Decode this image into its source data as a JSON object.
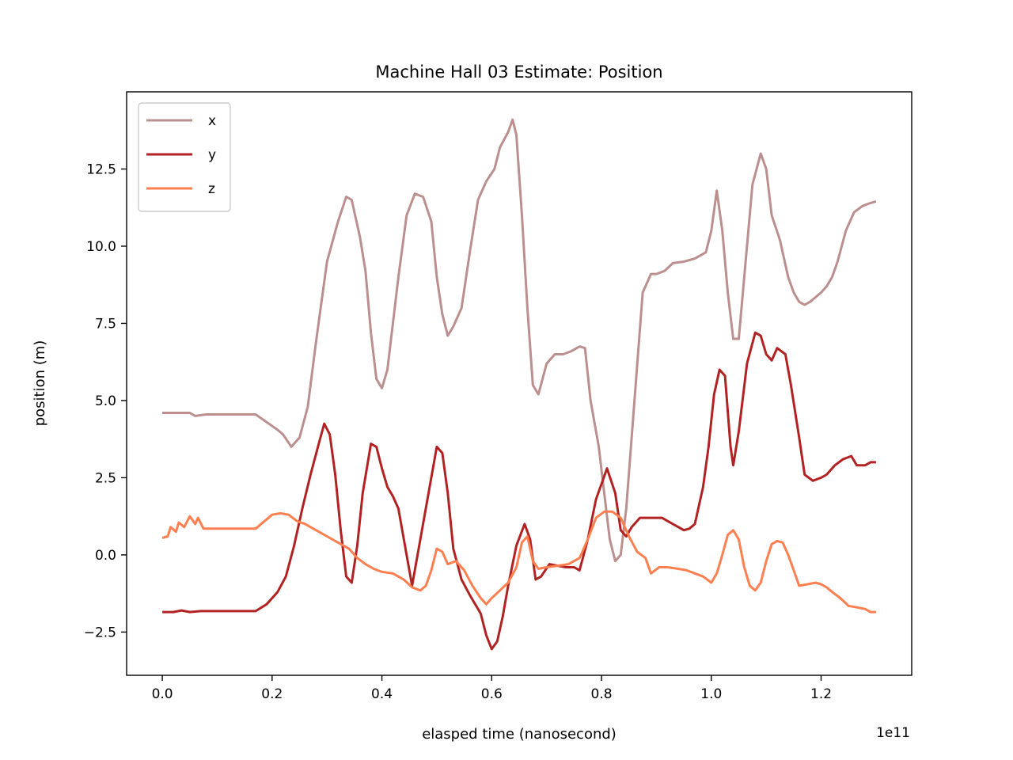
{
  "chart_data": {
    "type": "line",
    "title": "Machine Hall 03 Estimate: Position",
    "xlabel": "elasped time (nanosecond)",
    "ylabel": "position (m)",
    "x_offset_label": "1e11",
    "xlim": [
      -0.065,
      1.365
    ],
    "ylim": [
      -3.9,
      15.0
    ],
    "x_ticks": [
      0.0,
      0.2,
      0.4,
      0.6,
      0.8,
      1.0,
      1.2
    ],
    "x_tick_labels": [
      "0.0",
      "0.2",
      "0.4",
      "0.6",
      "0.8",
      "1.0",
      "1.2"
    ],
    "y_ticks": [
      -2.5,
      0.0,
      2.5,
      5.0,
      7.5,
      10.0,
      12.5
    ],
    "y_tick_labels": [
      "−2.5",
      "0.0",
      "2.5",
      "5.0",
      "7.5",
      "10.0",
      "12.5"
    ],
    "grid": false,
    "legend_position": "top-left",
    "series": [
      {
        "name": "x",
        "color": "#bc8f8f",
        "points": [
          [
            0.0,
            4.6
          ],
          [
            0.02,
            4.6
          ],
          [
            0.04,
            4.6
          ],
          [
            0.05,
            4.6
          ],
          [
            0.06,
            4.5
          ],
          [
            0.08,
            4.55
          ],
          [
            0.1,
            4.55
          ],
          [
            0.12,
            4.55
          ],
          [
            0.14,
            4.55
          ],
          [
            0.17,
            4.55
          ],
          [
            0.19,
            4.3
          ],
          [
            0.21,
            4.05
          ],
          [
            0.22,
            3.9
          ],
          [
            0.235,
            3.5
          ],
          [
            0.25,
            3.8
          ],
          [
            0.265,
            4.8
          ],
          [
            0.28,
            6.9
          ],
          [
            0.3,
            9.5
          ],
          [
            0.32,
            10.8
          ],
          [
            0.335,
            11.6
          ],
          [
            0.345,
            11.5
          ],
          [
            0.36,
            10.3
          ],
          [
            0.37,
            9.2
          ],
          [
            0.38,
            7.2
          ],
          [
            0.39,
            5.7
          ],
          [
            0.4,
            5.4
          ],
          [
            0.41,
            6.0
          ],
          [
            0.43,
            9.0
          ],
          [
            0.445,
            11.0
          ],
          [
            0.46,
            11.7
          ],
          [
            0.475,
            11.6
          ],
          [
            0.49,
            10.8
          ],
          [
            0.5,
            9.0
          ],
          [
            0.51,
            7.8
          ],
          [
            0.52,
            7.1
          ],
          [
            0.53,
            7.4
          ],
          [
            0.545,
            8.0
          ],
          [
            0.56,
            9.8
          ],
          [
            0.575,
            11.5
          ],
          [
            0.59,
            12.1
          ],
          [
            0.605,
            12.5
          ],
          [
            0.615,
            13.2
          ],
          [
            0.63,
            13.7
          ],
          [
            0.638,
            14.1
          ],
          [
            0.645,
            13.6
          ],
          [
            0.655,
            11.0
          ],
          [
            0.665,
            8.0
          ],
          [
            0.675,
            5.5
          ],
          [
            0.685,
            5.2
          ],
          [
            0.7,
            6.2
          ],
          [
            0.715,
            6.5
          ],
          [
            0.73,
            6.5
          ],
          [
            0.745,
            6.6
          ],
          [
            0.76,
            6.75
          ],
          [
            0.77,
            6.7
          ],
          [
            0.78,
            5.0
          ],
          [
            0.795,
            3.5
          ],
          [
            0.805,
            2.0
          ],
          [
            0.815,
            0.5
          ],
          [
            0.825,
            -0.2
          ],
          [
            0.835,
            0.0
          ],
          [
            0.845,
            1.5
          ],
          [
            0.86,
            5.0
          ],
          [
            0.875,
            8.5
          ],
          [
            0.89,
            9.1
          ],
          [
            0.9,
            9.1
          ],
          [
            0.915,
            9.2
          ],
          [
            0.93,
            9.45
          ],
          [
            0.95,
            9.5
          ],
          [
            0.97,
            9.6
          ],
          [
            0.99,
            9.8
          ],
          [
            1.0,
            10.5
          ],
          [
            1.01,
            11.8
          ],
          [
            1.02,
            10.5
          ],
          [
            1.03,
            8.5
          ],
          [
            1.04,
            7.0
          ],
          [
            1.05,
            7.0
          ],
          [
            1.06,
            9.0
          ],
          [
            1.075,
            12.0
          ],
          [
            1.09,
            13.0
          ],
          [
            1.1,
            12.5
          ],
          [
            1.11,
            11.0
          ],
          [
            1.125,
            10.2
          ],
          [
            1.14,
            9.0
          ],
          [
            1.15,
            8.5
          ],
          [
            1.16,
            8.2
          ],
          [
            1.17,
            8.1
          ],
          [
            1.18,
            8.2
          ],
          [
            1.2,
            8.5
          ],
          [
            1.21,
            8.7
          ],
          [
            1.22,
            9.0
          ],
          [
            1.23,
            9.5
          ],
          [
            1.245,
            10.5
          ],
          [
            1.26,
            11.1
          ],
          [
            1.275,
            11.3
          ],
          [
            1.29,
            11.4
          ],
          [
            1.3,
            11.45
          ]
        ]
      },
      {
        "name": "y",
        "color": "#b22222",
        "points": [
          [
            0.0,
            -1.85
          ],
          [
            0.02,
            -1.85
          ],
          [
            0.035,
            -1.8
          ],
          [
            0.05,
            -1.85
          ],
          [
            0.07,
            -1.82
          ],
          [
            0.1,
            -1.82
          ],
          [
            0.13,
            -1.82
          ],
          [
            0.15,
            -1.82
          ],
          [
            0.17,
            -1.82
          ],
          [
            0.19,
            -1.6
          ],
          [
            0.21,
            -1.2
          ],
          [
            0.225,
            -0.7
          ],
          [
            0.24,
            0.3
          ],
          [
            0.255,
            1.5
          ],
          [
            0.27,
            2.6
          ],
          [
            0.285,
            3.6
          ],
          [
            0.295,
            4.25
          ],
          [
            0.305,
            3.9
          ],
          [
            0.315,
            2.6
          ],
          [
            0.325,
            0.8
          ],
          [
            0.335,
            -0.7
          ],
          [
            0.345,
            -0.9
          ],
          [
            0.355,
            0.3
          ],
          [
            0.365,
            2.0
          ],
          [
            0.38,
            3.6
          ],
          [
            0.39,
            3.5
          ],
          [
            0.4,
            2.8
          ],
          [
            0.41,
            2.2
          ],
          [
            0.42,
            1.9
          ],
          [
            0.43,
            1.5
          ],
          [
            0.44,
            0.5
          ],
          [
            0.455,
            -1.0
          ],
          [
            0.47,
            0.5
          ],
          [
            0.485,
            2.0
          ],
          [
            0.5,
            3.5
          ],
          [
            0.51,
            3.3
          ],
          [
            0.52,
            2.0
          ],
          [
            0.53,
            0.2
          ],
          [
            0.545,
            -0.8
          ],
          [
            0.56,
            -1.3
          ],
          [
            0.58,
            -1.9
          ],
          [
            0.59,
            -2.6
          ],
          [
            0.6,
            -3.05
          ],
          [
            0.61,
            -2.8
          ],
          [
            0.62,
            -2.0
          ],
          [
            0.63,
            -1.0
          ],
          [
            0.645,
            0.3
          ],
          [
            0.66,
            1.0
          ],
          [
            0.67,
            0.5
          ],
          [
            0.68,
            -0.8
          ],
          [
            0.69,
            -0.7
          ],
          [
            0.705,
            -0.3
          ],
          [
            0.72,
            -0.35
          ],
          [
            0.735,
            -0.4
          ],
          [
            0.75,
            -0.4
          ],
          [
            0.76,
            -0.5
          ],
          [
            0.775,
            0.5
          ],
          [
            0.79,
            1.8
          ],
          [
            0.81,
            2.8
          ],
          [
            0.825,
            2.0
          ],
          [
            0.835,
            0.8
          ],
          [
            0.845,
            0.6
          ],
          [
            0.855,
            0.9
          ],
          [
            0.87,
            1.2
          ],
          [
            0.89,
            1.2
          ],
          [
            0.91,
            1.2
          ],
          [
            0.93,
            1.0
          ],
          [
            0.94,
            0.9
          ],
          [
            0.95,
            0.8
          ],
          [
            0.96,
            0.85
          ],
          [
            0.97,
            1.0
          ],
          [
            0.985,
            2.2
          ],
          [
            0.995,
            3.5
          ],
          [
            1.005,
            5.2
          ],
          [
            1.015,
            6.0
          ],
          [
            1.025,
            5.8
          ],
          [
            1.035,
            3.5
          ],
          [
            1.04,
            2.9
          ],
          [
            1.05,
            4.0
          ],
          [
            1.065,
            6.2
          ],
          [
            1.08,
            7.2
          ],
          [
            1.09,
            7.1
          ],
          [
            1.1,
            6.5
          ],
          [
            1.11,
            6.3
          ],
          [
            1.12,
            6.7
          ],
          [
            1.135,
            6.5
          ],
          [
            1.145,
            5.5
          ],
          [
            1.16,
            3.8
          ],
          [
            1.17,
            2.6
          ],
          [
            1.185,
            2.4
          ],
          [
            1.2,
            2.5
          ],
          [
            1.21,
            2.6
          ],
          [
            1.225,
            2.9
          ],
          [
            1.24,
            3.1
          ],
          [
            1.255,
            3.2
          ],
          [
            1.265,
            2.9
          ],
          [
            1.28,
            2.9
          ],
          [
            1.29,
            3.0
          ],
          [
            1.3,
            3.0
          ]
        ]
      },
      {
        "name": "z",
        "color": "#ff7f50",
        "points": [
          [
            0.0,
            0.55
          ],
          [
            0.01,
            0.6
          ],
          [
            0.015,
            0.9
          ],
          [
            0.025,
            0.75
          ],
          [
            0.03,
            1.05
          ],
          [
            0.04,
            0.9
          ],
          [
            0.05,
            1.25
          ],
          [
            0.06,
            1.0
          ],
          [
            0.065,
            1.2
          ],
          [
            0.075,
            0.85
          ],
          [
            0.1,
            0.85
          ],
          [
            0.13,
            0.85
          ],
          [
            0.16,
            0.85
          ],
          [
            0.17,
            0.85
          ],
          [
            0.18,
            1.0
          ],
          [
            0.2,
            1.3
          ],
          [
            0.215,
            1.35
          ],
          [
            0.23,
            1.3
          ],
          [
            0.245,
            1.1
          ],
          [
            0.26,
            1.0
          ],
          [
            0.28,
            0.8
          ],
          [
            0.3,
            0.6
          ],
          [
            0.32,
            0.4
          ],
          [
            0.34,
            0.2
          ],
          [
            0.355,
            -0.1
          ],
          [
            0.37,
            -0.3
          ],
          [
            0.385,
            -0.45
          ],
          [
            0.4,
            -0.55
          ],
          [
            0.42,
            -0.6
          ],
          [
            0.44,
            -0.8
          ],
          [
            0.455,
            -1.05
          ],
          [
            0.47,
            -1.15
          ],
          [
            0.48,
            -1.0
          ],
          [
            0.49,
            -0.5
          ],
          [
            0.5,
            0.2
          ],
          [
            0.51,
            0.1
          ],
          [
            0.52,
            -0.3
          ],
          [
            0.535,
            -0.2
          ],
          [
            0.55,
            -0.5
          ],
          [
            0.565,
            -1.0
          ],
          [
            0.58,
            -1.4
          ],
          [
            0.59,
            -1.6
          ],
          [
            0.6,
            -1.4
          ],
          [
            0.615,
            -1.15
          ],
          [
            0.63,
            -0.9
          ],
          [
            0.645,
            -0.4
          ],
          [
            0.655,
            0.4
          ],
          [
            0.665,
            0.6
          ],
          [
            0.675,
            -0.2
          ],
          [
            0.685,
            -0.45
          ],
          [
            0.7,
            -0.4
          ],
          [
            0.72,
            -0.35
          ],
          [
            0.74,
            -0.3
          ],
          [
            0.76,
            -0.1
          ],
          [
            0.775,
            0.5
          ],
          [
            0.79,
            1.2
          ],
          [
            0.805,
            1.4
          ],
          [
            0.82,
            1.4
          ],
          [
            0.835,
            1.2
          ],
          [
            0.85,
            0.6
          ],
          [
            0.865,
            0.1
          ],
          [
            0.88,
            -0.1
          ],
          [
            0.89,
            -0.6
          ],
          [
            0.905,
            -0.4
          ],
          [
            0.92,
            -0.4
          ],
          [
            0.94,
            -0.45
          ],
          [
            0.955,
            -0.5
          ],
          [
            0.97,
            -0.6
          ],
          [
            0.985,
            -0.7
          ],
          [
            1.0,
            -0.9
          ],
          [
            1.01,
            -0.6
          ],
          [
            1.02,
            0.0
          ],
          [
            1.03,
            0.65
          ],
          [
            1.04,
            0.8
          ],
          [
            1.05,
            0.5
          ],
          [
            1.06,
            -0.4
          ],
          [
            1.07,
            -1.0
          ],
          [
            1.08,
            -1.15
          ],
          [
            1.09,
            -0.9
          ],
          [
            1.1,
            -0.2
          ],
          [
            1.11,
            0.35
          ],
          [
            1.12,
            0.45
          ],
          [
            1.13,
            0.4
          ],
          [
            1.14,
            0.0
          ],
          [
            1.15,
            -0.5
          ],
          [
            1.16,
            -1.0
          ],
          [
            1.175,
            -0.95
          ],
          [
            1.19,
            -0.9
          ],
          [
            1.2,
            -0.95
          ],
          [
            1.21,
            -1.05
          ],
          [
            1.22,
            -1.2
          ],
          [
            1.235,
            -1.4
          ],
          [
            1.25,
            -1.65
          ],
          [
            1.265,
            -1.7
          ],
          [
            1.28,
            -1.75
          ],
          [
            1.29,
            -1.85
          ],
          [
            1.3,
            -1.85
          ]
        ]
      }
    ]
  }
}
